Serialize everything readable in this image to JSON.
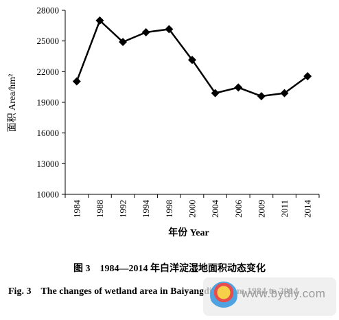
{
  "chart_data": {
    "type": "line",
    "ylabel": "面积 Area/hm²",
    "xlabel": "年份 Year",
    "categories": [
      "1984",
      "1988",
      "1992",
      "1994",
      "1998",
      "2000",
      "2004",
      "2006",
      "2009",
      "2011",
      "2014"
    ],
    "series": [
      {
        "values": [
          21050,
          27000,
          24900,
          25850,
          26150,
          23150,
          19900,
          20450,
          19600,
          19900,
          21550
        ]
      }
    ],
    "ylim": [
      10000,
      28000
    ],
    "yticks": [
      "28000",
      "25000",
      "22000",
      "19000",
      "16000",
      "13000",
      "10000"
    ],
    "marker": "diamond",
    "line_color": "#000000",
    "grid": false
  },
  "caption": {
    "cn": "图 3　1984—2014 年白洋淀湿地面积动态变化",
    "en": "Fig. 3　The changes of wetland area in Baiyangdian from 1984 to 2014"
  },
  "watermark": {
    "text": "www.bydly.com",
    "icon": "site-logo-icon"
  }
}
